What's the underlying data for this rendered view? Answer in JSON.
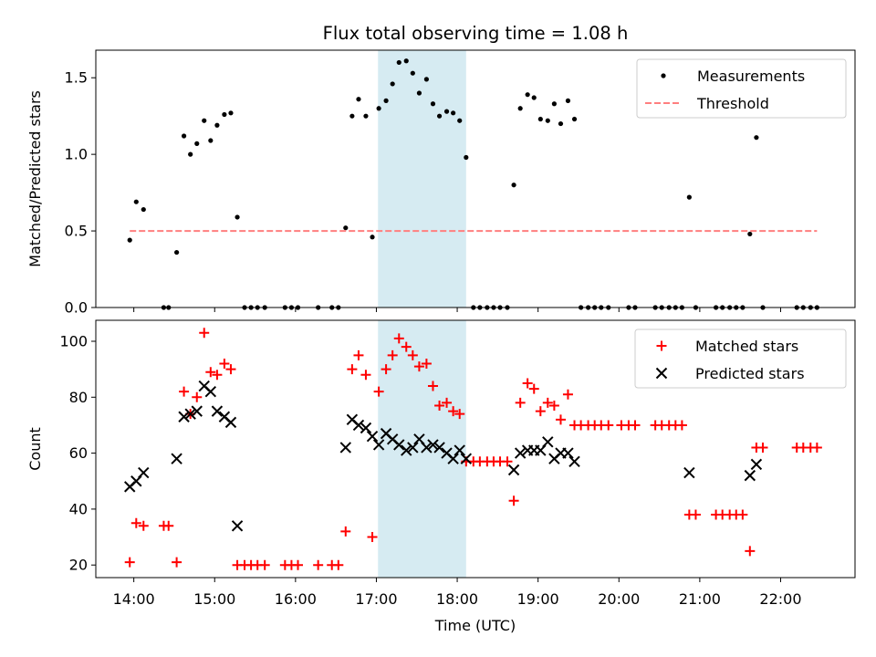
{
  "chart_data": {
    "title": "Flux total observing time = 1.08 h",
    "xlabel": "Time (UTC)",
    "x_ticks": [
      "14:00",
      "15:00",
      "16:00",
      "17:00",
      "18:00",
      "19:00",
      "20:00",
      "21:00",
      "22:00"
    ],
    "x_tick_hours": [
      14,
      15,
      16,
      17,
      18,
      19,
      20,
      21,
      22
    ],
    "xlim_hours": [
      13.53,
      22.92
    ],
    "highlight_span_hours": [
      17.02,
      18.11
    ],
    "highlight_color": "#add8e6",
    "panels": [
      {
        "id": "ratio",
        "type": "scatter",
        "ylabel": "Matched/Predicted stars",
        "ylim": [
          0,
          1.68
        ],
        "y_ticks": [
          0.0,
          0.5,
          1.0,
          1.5
        ],
        "y_tick_labels": [
          "0.0",
          "0.5",
          "1.0",
          "1.5"
        ],
        "legend_position": "upper-right",
        "series": [
          {
            "name": "Measurements",
            "marker": "dot",
            "color": "#000000",
            "points": [
              [
                13.95,
                0.44
              ],
              [
                14.03,
                0.69
              ],
              [
                14.12,
                0.64
              ],
              [
                14.37,
                0.0
              ],
              [
                14.43,
                0.0
              ],
              [
                14.53,
                0.36
              ],
              [
                14.62,
                1.12
              ],
              [
                14.7,
                1.0
              ],
              [
                14.78,
                1.07
              ],
              [
                14.87,
                1.22
              ],
              [
                14.95,
                1.09
              ],
              [
                15.03,
                1.19
              ],
              [
                15.12,
                1.26
              ],
              [
                15.2,
                1.27
              ],
              [
                15.28,
                0.59
              ],
              [
                15.37,
                0.0
              ],
              [
                15.45,
                0.0
              ],
              [
                15.53,
                0.0
              ],
              [
                15.62,
                0.0
              ],
              [
                15.87,
                0.0
              ],
              [
                15.95,
                0.0
              ],
              [
                16.03,
                0.0
              ],
              [
                16.28,
                0.0
              ],
              [
                16.45,
                0.0
              ],
              [
                16.53,
                0.0
              ],
              [
                16.62,
                0.52
              ],
              [
                16.7,
                1.25
              ],
              [
                16.78,
                1.36
              ],
              [
                16.87,
                1.25
              ],
              [
                16.95,
                0.46
              ],
              [
                17.03,
                1.3
              ],
              [
                17.12,
                1.35
              ],
              [
                17.2,
                1.46
              ],
              [
                17.28,
                1.6
              ],
              [
                17.37,
                1.61
              ],
              [
                17.45,
                1.53
              ],
              [
                17.53,
                1.4
              ],
              [
                17.62,
                1.49
              ],
              [
                17.7,
                1.33
              ],
              [
                17.78,
                1.25
              ],
              [
                17.87,
                1.28
              ],
              [
                17.95,
                1.27
              ],
              [
                18.03,
                1.22
              ],
              [
                18.11,
                0.98
              ],
              [
                18.2,
                0.0
              ],
              [
                18.28,
                0.0
              ],
              [
                18.37,
                0.0
              ],
              [
                18.45,
                0.0
              ],
              [
                18.53,
                0.0
              ],
              [
                18.62,
                0.0
              ],
              [
                18.7,
                0.8
              ],
              [
                18.78,
                1.3
              ],
              [
                18.87,
                1.39
              ],
              [
                18.95,
                1.37
              ],
              [
                19.03,
                1.23
              ],
              [
                19.12,
                1.22
              ],
              [
                19.2,
                1.33
              ],
              [
                19.28,
                1.2
              ],
              [
                19.37,
                1.35
              ],
              [
                19.45,
                1.23
              ],
              [
                19.53,
                0.0
              ],
              [
                19.62,
                0.0
              ],
              [
                19.7,
                0.0
              ],
              [
                19.78,
                0.0
              ],
              [
                19.87,
                0.0
              ],
              [
                20.12,
                0.0
              ],
              [
                20.2,
                0.0
              ],
              [
                20.45,
                0.0
              ],
              [
                20.53,
                0.0
              ],
              [
                20.62,
                0.0
              ],
              [
                20.7,
                0.0
              ],
              [
                20.78,
                0.0
              ],
              [
                20.87,
                0.72
              ],
              [
                20.95,
                0.0
              ],
              [
                21.2,
                0.0
              ],
              [
                21.28,
                0.0
              ],
              [
                21.37,
                0.0
              ],
              [
                21.45,
                0.0
              ],
              [
                21.53,
                0.0
              ],
              [
                21.62,
                0.48
              ],
              [
                21.7,
                1.11
              ],
              [
                21.78,
                0.0
              ],
              [
                22.2,
                0.0
              ],
              [
                22.28,
                0.0
              ],
              [
                22.37,
                0.0
              ],
              [
                22.45,
                0.0
              ]
            ]
          },
          {
            "name": "Threshold",
            "type": "line",
            "style": "dashed",
            "color": "#ff7f7f",
            "points": [
              [
                13.95,
                0.5
              ],
              [
                22.45,
                0.5
              ]
            ]
          }
        ]
      },
      {
        "id": "counts",
        "type": "scatter",
        "ylabel": "Count",
        "ylim": [
          15.5,
          107.5
        ],
        "y_ticks": [
          20,
          40,
          60,
          80,
          100
        ],
        "y_tick_labels": [
          "20",
          "40",
          "60",
          "80",
          "100"
        ],
        "legend_position": "upper-right",
        "series": [
          {
            "name": "Matched stars",
            "marker": "plus",
            "color": "#ff0000",
            "points": [
              [
                13.95,
                21
              ],
              [
                14.03,
                35
              ],
              [
                14.12,
                34
              ],
              [
                14.37,
                34
              ],
              [
                14.43,
                34
              ],
              [
                14.53,
                21
              ],
              [
                14.62,
                82
              ],
              [
                14.7,
                74
              ],
              [
                14.78,
                80
              ],
              [
                14.87,
                103
              ],
              [
                14.95,
                89
              ],
              [
                15.03,
                88
              ],
              [
                15.12,
                92
              ],
              [
                15.2,
                90
              ],
              [
                15.28,
                20
              ],
              [
                15.37,
                20
              ],
              [
                15.45,
                20
              ],
              [
                15.53,
                20
              ],
              [
                15.62,
                20
              ],
              [
                15.87,
                20
              ],
              [
                15.95,
                20
              ],
              [
                16.03,
                20
              ],
              [
                16.28,
                20
              ],
              [
                16.45,
                20
              ],
              [
                16.53,
                20
              ],
              [
                16.62,
                32
              ],
              [
                16.7,
                90
              ],
              [
                16.78,
                95
              ],
              [
                16.87,
                88
              ],
              [
                16.95,
                30
              ],
              [
                17.03,
                82
              ],
              [
                17.12,
                90
              ],
              [
                17.2,
                95
              ],
              [
                17.28,
                101
              ],
              [
                17.37,
                98
              ],
              [
                17.45,
                95
              ],
              [
                17.53,
                91
              ],
              [
                17.62,
                92
              ],
              [
                17.7,
                84
              ],
              [
                17.78,
                77
              ],
              [
                17.87,
                78
              ],
              [
                17.95,
                75
              ],
              [
                18.03,
                74
              ],
              [
                18.11,
                57
              ],
              [
                18.2,
                57
              ],
              [
                18.28,
                57
              ],
              [
                18.37,
                57
              ],
              [
                18.45,
                57
              ],
              [
                18.53,
                57
              ],
              [
                18.62,
                57
              ],
              [
                18.7,
                43
              ],
              [
                18.78,
                78
              ],
              [
                18.87,
                85
              ],
              [
                18.95,
                83
              ],
              [
                19.03,
                75
              ],
              [
                19.12,
                78
              ],
              [
                19.2,
                77
              ],
              [
                19.28,
                72
              ],
              [
                19.37,
                81
              ],
              [
                19.45,
                70
              ],
              [
                19.53,
                70
              ],
              [
                19.62,
                70
              ],
              [
                19.7,
                70
              ],
              [
                19.78,
                70
              ],
              [
                19.87,
                70
              ],
              [
                20.03,
                70
              ],
              [
                20.12,
                70
              ],
              [
                20.2,
                70
              ],
              [
                20.45,
                70
              ],
              [
                20.53,
                70
              ],
              [
                20.62,
                70
              ],
              [
                20.7,
                70
              ],
              [
                20.78,
                70
              ],
              [
                20.87,
                38
              ],
              [
                20.95,
                38
              ],
              [
                21.2,
                38
              ],
              [
                21.28,
                38
              ],
              [
                21.37,
                38
              ],
              [
                21.45,
                38
              ],
              [
                21.53,
                38
              ],
              [
                21.62,
                25
              ],
              [
                21.7,
                62
              ],
              [
                21.78,
                62
              ],
              [
                22.2,
                62
              ],
              [
                22.28,
                62
              ],
              [
                22.37,
                62
              ],
              [
                22.45,
                62
              ]
            ]
          },
          {
            "name": "Predicted stars",
            "marker": "x",
            "color": "#000000",
            "points": [
              [
                13.95,
                48
              ],
              [
                14.03,
                50
              ],
              [
                14.12,
                53
              ],
              [
                14.53,
                58
              ],
              [
                14.62,
                73
              ],
              [
                14.7,
                74
              ],
              [
                14.78,
                75
              ],
              [
                14.87,
                84
              ],
              [
                14.95,
                82
              ],
              [
                15.03,
                75
              ],
              [
                15.12,
                73
              ],
              [
                15.2,
                71
              ],
              [
                15.28,
                34
              ],
              [
                16.62,
                62
              ],
              [
                16.7,
                72
              ],
              [
                16.78,
                70
              ],
              [
                16.87,
                69
              ],
              [
                16.95,
                66
              ],
              [
                17.03,
                63
              ],
              [
                17.12,
                67
              ],
              [
                17.2,
                65
              ],
              [
                17.28,
                63
              ],
              [
                17.37,
                61
              ],
              [
                17.45,
                62
              ],
              [
                17.53,
                65
              ],
              [
                17.62,
                62
              ],
              [
                17.7,
                63
              ],
              [
                17.78,
                62
              ],
              [
                17.87,
                60
              ],
              [
                17.95,
                58
              ],
              [
                18.03,
                61
              ],
              [
                18.11,
                58
              ],
              [
                18.7,
                54
              ],
              [
                18.78,
                60
              ],
              [
                18.87,
                61
              ],
              [
                18.95,
                61
              ],
              [
                19.03,
                61
              ],
              [
                19.12,
                64
              ],
              [
                19.2,
                58
              ],
              [
                19.28,
                60
              ],
              [
                19.37,
                60
              ],
              [
                19.45,
                57
              ],
              [
                20.87,
                53
              ],
              [
                21.62,
                52
              ],
              [
                21.7,
                56
              ]
            ]
          }
        ]
      }
    ]
  }
}
